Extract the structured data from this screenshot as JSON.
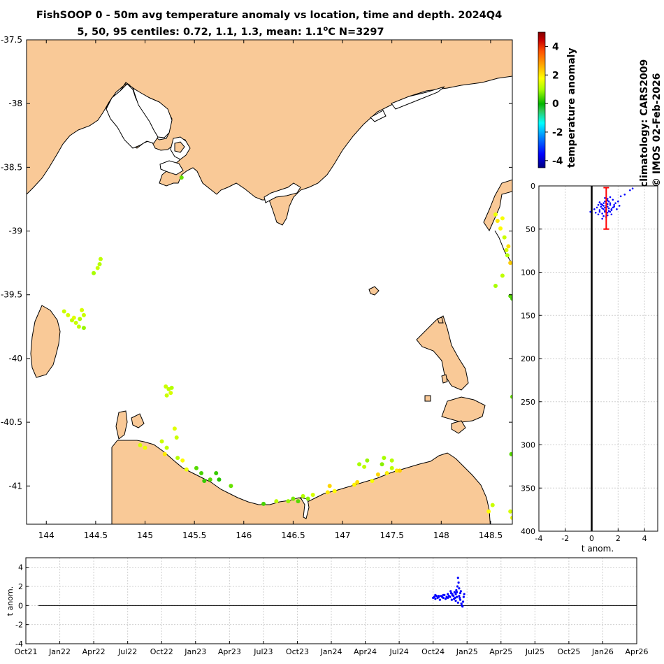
{
  "title": {
    "line1": "FishSOOP 0 - 50m avg temperature anomaly vs location, time and depth. 2024Q4",
    "line2_prefix": "5, 50, 95 centiles: 0.72, 1.1, 1.3, mean: 1.1",
    "line2_deg": "o",
    "line2_suffix": "C N=3297"
  },
  "side_text": {
    "climatology": "climatology: CARS2009",
    "credit": "© IMOS 02-Feb-2026"
  },
  "colors": {
    "land": "#f9c997",
    "mean_bar": "#ff0000",
    "profile_points": "#0000ff",
    "zero_line": "#000000",
    "grid": "#d0d0d0"
  },
  "chart_data": [
    {
      "id": "map",
      "type": "scatter",
      "xlabel": "",
      "ylabel": "",
      "xlim": [
        143.8,
        148.72
      ],
      "ylim": [
        -41.3,
        -37.5
      ],
      "x_ticks": [
        144,
        144.5,
        145,
        145.5,
        146,
        146.5,
        147,
        147.5,
        148,
        148.5
      ],
      "x_tick_labels": [
        "144",
        "144.5",
        "145",
        "145.5",
        "146",
        "146.5",
        "147",
        "147.5",
        "148",
        "148.5"
      ],
      "y_ticks": [
        -37.5,
        -38,
        -38.5,
        -39,
        -39.5,
        -40,
        -40.5,
        -41
      ],
      "y_tick_labels": [
        "-37.5",
        "-38",
        "-38.5",
        "-39",
        "-39.5",
        "-40",
        "-40.5",
        "-41"
      ],
      "color_by": "temperature anomaly",
      "points": [
        {
          "lon": 145.37,
          "lat": -38.58,
          "anom": 0.6
        },
        {
          "lon": 144.55,
          "lat": -39.22,
          "anom": 1.2
        },
        {
          "lon": 144.54,
          "lat": -39.26,
          "anom": 1.1
        },
        {
          "lon": 144.52,
          "lat": -39.29,
          "anom": 1.3
        },
        {
          "lon": 144.48,
          "lat": -39.33,
          "anom": 1.0
        },
        {
          "lon": 144.18,
          "lat": -39.63,
          "anom": 1.3
        },
        {
          "lon": 144.22,
          "lat": -39.66,
          "anom": 1.4
        },
        {
          "lon": 144.26,
          "lat": -39.7,
          "anom": 1.2
        },
        {
          "lon": 144.3,
          "lat": -39.72,
          "anom": 1.3
        },
        {
          "lon": 144.34,
          "lat": -39.69,
          "anom": 1.1
        },
        {
          "lon": 144.36,
          "lat": -39.62,
          "anom": 1.4
        },
        {
          "lon": 144.38,
          "lat": -39.66,
          "anom": 1.3
        },
        {
          "lon": 144.33,
          "lat": -39.75,
          "anom": 1.2
        },
        {
          "lon": 144.38,
          "lat": -39.76,
          "anom": 0.9
        },
        {
          "lon": 144.28,
          "lat": -39.68,
          "anom": 1.5
        },
        {
          "lon": 145.21,
          "lat": -40.22,
          "anom": 1.3
        },
        {
          "lon": 145.24,
          "lat": -40.24,
          "anom": 1.2
        },
        {
          "lon": 145.26,
          "lat": -40.27,
          "anom": 1.4
        },
        {
          "lon": 145.22,
          "lat": -40.29,
          "anom": 1.3
        },
        {
          "lon": 145.27,
          "lat": -40.23,
          "anom": 1.1
        },
        {
          "lon": 145.3,
          "lat": -40.55,
          "anom": 1.5
        },
        {
          "lon": 145.32,
          "lat": -40.62,
          "anom": 1.3
        },
        {
          "lon": 144.95,
          "lat": -40.68,
          "anom": 1.4
        },
        {
          "lon": 145.0,
          "lat": -40.7,
          "anom": 1.6
        },
        {
          "lon": 145.17,
          "lat": -40.65,
          "anom": 1.3
        },
        {
          "lon": 145.2,
          "lat": -40.75,
          "anom": 2.0
        },
        {
          "lon": 145.22,
          "lat": -40.7,
          "anom": 1.2
        },
        {
          "lon": 145.33,
          "lat": -40.78,
          "anom": 1.1
        },
        {
          "lon": 145.38,
          "lat": -40.8,
          "anom": 1.8
        },
        {
          "lon": 145.42,
          "lat": -40.87,
          "anom": 1.6
        },
        {
          "lon": 145.52,
          "lat": -40.86,
          "anom": 0.5
        },
        {
          "lon": 145.57,
          "lat": -40.9,
          "anom": 0.4
        },
        {
          "lon": 145.6,
          "lat": -40.96,
          "anom": 0.3
        },
        {
          "lon": 145.66,
          "lat": -40.95,
          "anom": 0.5
        },
        {
          "lon": 145.72,
          "lat": -40.9,
          "anom": 0.3
        },
        {
          "lon": 145.75,
          "lat": -40.95,
          "anom": 0.2
        },
        {
          "lon": 145.87,
          "lat": -41.0,
          "anom": 0.6
        },
        {
          "lon": 146.2,
          "lat": -41.14,
          "anom": 0.4
        },
        {
          "lon": 146.33,
          "lat": -41.12,
          "anom": 1.2
        },
        {
          "lon": 146.45,
          "lat": -41.12,
          "anom": 0.9
        },
        {
          "lon": 146.5,
          "lat": -41.1,
          "anom": 0.7
        },
        {
          "lon": 146.55,
          "lat": -41.12,
          "anom": 0.5
        },
        {
          "lon": 146.6,
          "lat": -41.08,
          "anom": 1.1
        },
        {
          "lon": 146.65,
          "lat": -41.1,
          "anom": 0.8
        },
        {
          "lon": 146.7,
          "lat": -41.07,
          "anom": 1.4
        },
        {
          "lon": 146.85,
          "lat": -41.05,
          "anom": 2.0
        },
        {
          "lon": 146.87,
          "lat": -41.0,
          "anom": 2.2
        },
        {
          "lon": 146.92,
          "lat": -41.04,
          "anom": 1.8
        },
        {
          "lon": 147.12,
          "lat": -40.99,
          "anom": 1.9
        },
        {
          "lon": 147.15,
          "lat": -40.97,
          "anom": 2.1
        },
        {
          "lon": 147.17,
          "lat": -40.83,
          "anom": 1.0
        },
        {
          "lon": 147.22,
          "lat": -40.85,
          "anom": 1.2
        },
        {
          "lon": 147.25,
          "lat": -40.8,
          "anom": 0.9
        },
        {
          "lon": 147.3,
          "lat": -40.96,
          "anom": 1.7
        },
        {
          "lon": 147.36,
          "lat": -40.91,
          "anom": 2.2
        },
        {
          "lon": 147.4,
          "lat": -40.83,
          "anom": 0.8
        },
        {
          "lon": 147.42,
          "lat": -40.78,
          "anom": 1.0
        },
        {
          "lon": 147.45,
          "lat": -40.9,
          "anom": 1.9
        },
        {
          "lon": 147.5,
          "lat": -40.86,
          "anom": 1.2
        },
        {
          "lon": 147.55,
          "lat": -40.88,
          "anom": 2.0
        },
        {
          "lon": 147.58,
          "lat": -40.88,
          "anom": 2.3
        },
        {
          "lon": 147.5,
          "lat": -40.8,
          "anom": 1.1
        },
        {
          "lon": 148.55,
          "lat": -38.87,
          "anom": 1.6
        },
        {
          "lon": 148.57,
          "lat": -38.92,
          "anom": 2.0
        },
        {
          "lon": 148.6,
          "lat": -38.98,
          "anom": 1.8
        },
        {
          "lon": 148.62,
          "lat": -38.9,
          "anom": 1.7
        },
        {
          "lon": 148.64,
          "lat": -39.05,
          "anom": 1.3
        },
        {
          "lon": 148.66,
          "lat": -39.15,
          "anom": 1.4
        },
        {
          "lon": 148.67,
          "lat": -39.19,
          "anom": 1.1
        },
        {
          "lon": 148.68,
          "lat": -39.12,
          "anom": 2.1
        },
        {
          "lon": 148.7,
          "lat": -39.25,
          "anom": 2.3
        },
        {
          "lon": 148.62,
          "lat": -39.35,
          "anom": 1.2
        },
        {
          "lon": 148.55,
          "lat": -39.43,
          "anom": 1.0
        },
        {
          "lon": 148.7,
          "lat": -39.51,
          "anom": 0.5
        },
        {
          "lon": 148.72,
          "lat": -39.53,
          "anom": 0.4
        },
        {
          "lon": 148.72,
          "lat": -40.3,
          "anom": 0.6
        },
        {
          "lon": 148.71,
          "lat": -40.75,
          "anom": 0.5
        },
        {
          "lon": 148.74,
          "lat": -40.81,
          "anom": 2.1
        },
        {
          "lon": 148.52,
          "lat": -41.15,
          "anom": 1.3
        },
        {
          "lon": 148.48,
          "lat": -41.2,
          "anom": 1.8
        },
        {
          "lon": 148.7,
          "lat": -41.2,
          "anom": 1.4
        },
        {
          "lon": 148.72,
          "lat": -41.25,
          "anom": 1.6
        }
      ]
    },
    {
      "id": "colorbar",
      "type": "heatmap",
      "label": "temperature anomaly",
      "range": [
        -4.5,
        5
      ],
      "ticks": [
        4,
        2,
        0,
        -2,
        -4
      ],
      "tick_labels": [
        "4",
        "2",
        "0",
        "-2",
        "-4"
      ],
      "colormap": [
        "#00007f",
        "#0000ff",
        "#007fff",
        "#00ffff",
        "#3cc83c",
        "#00b400",
        "#aaff00",
        "#ffff00",
        "#ffa500",
        "#ff5000",
        "#c80000",
        "#800000"
      ]
    },
    {
      "id": "depth_profile",
      "type": "scatter",
      "xlabel": "t anom.",
      "ylabel": "",
      "xlim": [
        -4,
        5
      ],
      "ylim": [
        0,
        400
      ],
      "x_ticks": [
        -4,
        -2,
        0,
        2,
        4
      ],
      "x_tick_labels": [
        "-4",
        "-2",
        "0",
        "2",
        "4"
      ],
      "y_ticks": [
        0,
        50,
        100,
        150,
        200,
        250,
        300,
        350,
        400
      ],
      "y_tick_labels": [
        "0",
        "50",
        "100",
        "150",
        "200",
        "250",
        "300",
        "350",
        "400"
      ],
      "y_reversed": true,
      "mean_bar": {
        "x": 1.1,
        "depth_min": 2,
        "depth_max": 50
      },
      "points": [
        [
          -0.1,
          30
        ],
        [
          0.2,
          27
        ],
        [
          0.4,
          25
        ],
        [
          0.5,
          22
        ],
        [
          0.6,
          28
        ],
        [
          0.7,
          24
        ],
        [
          0.8,
          26
        ],
        [
          0.9,
          23
        ],
        [
          1.0,
          25
        ],
        [
          1.1,
          27
        ],
        [
          1.2,
          24
        ],
        [
          1.3,
          26
        ],
        [
          1.4,
          22
        ],
        [
          1.5,
          28
        ],
        [
          0.6,
          30
        ],
        [
          0.8,
          32
        ],
        [
          1.0,
          29
        ],
        [
          1.2,
          31
        ],
        [
          1.4,
          30
        ],
        [
          1.6,
          25
        ],
        [
          1.8,
          20
        ],
        [
          2.0,
          18
        ],
        [
          2.2,
          12
        ],
        [
          2.5,
          10
        ],
        [
          2.9,
          5
        ],
        [
          3.1,
          3
        ],
        [
          1.2,
          15
        ],
        [
          1.0,
          18
        ],
        [
          0.9,
          20
        ],
        [
          0.7,
          21
        ],
        [
          1.1,
          20
        ],
        [
          1.3,
          18
        ],
        [
          1.6,
          16
        ],
        [
          1.7,
          22
        ],
        [
          1.9,
          27
        ],
        [
          2.1,
          23
        ],
        [
          0.5,
          33
        ],
        [
          0.3,
          31
        ],
        [
          0.9,
          35
        ],
        [
          1.2,
          34
        ],
        [
          1.5,
          33
        ],
        [
          0.8,
          38
        ],
        [
          1.1,
          36
        ],
        [
          1.4,
          20
        ],
        [
          1.2,
          21
        ],
        [
          0.9,
          27
        ],
        [
          1.0,
          30
        ],
        [
          1.3,
          29
        ],
        [
          1.5,
          27
        ],
        [
          1.7,
          24
        ],
        [
          1.1,
          23
        ],
        [
          0.8,
          22
        ],
        [
          1.2,
          17
        ],
        [
          1.4,
          13
        ],
        [
          0.6,
          19
        ],
        [
          1.0,
          14
        ]
      ]
    },
    {
      "id": "time_series",
      "type": "scatter",
      "xlabel": "",
      "ylabel": "t anom.",
      "ylim": [
        -4,
        5
      ],
      "y_ticks": [
        4,
        2,
        0,
        -2,
        -4
      ],
      "y_tick_labels": [
        "4",
        "2",
        "0",
        "-2",
        "-4"
      ],
      "x_tick_labels": [
        "Oct21",
        "Jan22",
        "Apr22",
        "Jul22",
        "Oct22",
        "Jan23",
        "Apr23",
        "Jul23",
        "Oct23",
        "Jan24",
        "Apr24",
        "Jul24",
        "Oct24",
        "Jan25",
        "Apr25",
        "Jul25",
        "Oct25",
        "Jan26",
        "Apr26"
      ],
      "x_units": "month index since Oct21",
      "points": [
        [
          36.0,
          0.8
        ],
        [
          36.1,
          0.9
        ],
        [
          36.2,
          0.7
        ],
        [
          36.3,
          1.0
        ],
        [
          36.4,
          0.8
        ],
        [
          36.5,
          0.9
        ],
        [
          36.6,
          0.6
        ],
        [
          36.7,
          1.0
        ],
        [
          36.8,
          0.9
        ],
        [
          36.9,
          0.8
        ],
        [
          37.0,
          1.1
        ],
        [
          37.1,
          0.7
        ],
        [
          37.2,
          0.9
        ],
        [
          37.3,
          1.2
        ],
        [
          37.4,
          1.0
        ],
        [
          37.5,
          0.9
        ],
        [
          37.6,
          1.3
        ],
        [
          37.7,
          1.1
        ],
        [
          37.8,
          1.0
        ],
        [
          37.9,
          1.4
        ],
        [
          38.0,
          1.2
        ],
        [
          38.05,
          1.6
        ],
        [
          38.1,
          1.4
        ],
        [
          38.15,
          2.0
        ],
        [
          38.2,
          2.9
        ],
        [
          38.25,
          2.4
        ],
        [
          38.3,
          1.0
        ],
        [
          38.35,
          0.8
        ],
        [
          38.4,
          1.3
        ],
        [
          38.45,
          1.5
        ],
        [
          38.5,
          0.2
        ],
        [
          38.55,
          0.0
        ],
        [
          38.6,
          -0.1
        ],
        [
          38.65,
          0.4
        ],
        [
          38.7,
          0.9
        ],
        [
          38.75,
          1.2
        ],
        [
          37.55,
          1.5
        ],
        [
          37.65,
          0.6
        ],
        [
          37.85,
          0.7
        ],
        [
          37.95,
          0.8
        ],
        [
          38.0,
          0.5
        ],
        [
          38.2,
          0.3
        ],
        [
          38.3,
          1.8
        ],
        [
          38.4,
          0.6
        ],
        [
          38.1,
          0.9
        ],
        [
          37.7,
          1.2
        ],
        [
          37.3,
          0.8
        ],
        [
          36.9,
          1.1
        ],
        [
          36.5,
          1.0
        ],
        [
          36.2,
          1.1
        ]
      ]
    }
  ]
}
